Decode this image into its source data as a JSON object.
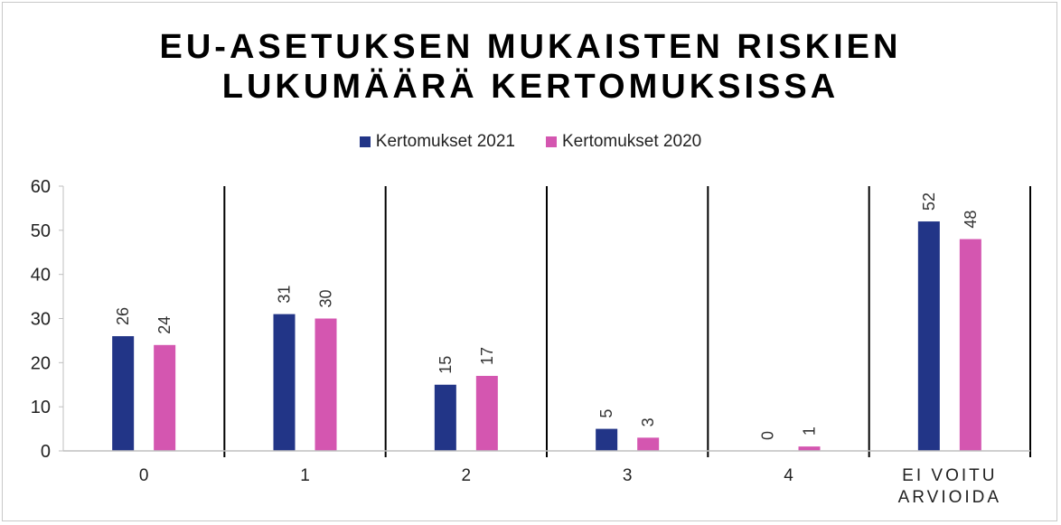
{
  "chart_data": {
    "type": "bar",
    "title_lines": [
      "EU-ASETUKSEN MUKAISTEN RISKIEN",
      "LUKUMÄÄRÄ KERTOMUKSISSA"
    ],
    "categories": [
      [
        "0"
      ],
      [
        "1"
      ],
      [
        "2"
      ],
      [
        "3"
      ],
      [
        "4"
      ],
      [
        "EI VOITU",
        "ARVIOIDA"
      ]
    ],
    "series": [
      {
        "name": "Kertomukset 2021",
        "color": "#223587",
        "values": [
          26,
          31,
          15,
          5,
          0,
          52
        ]
      },
      {
        "name": "Kertomukset 2020",
        "color": "#d456b0",
        "values": [
          24,
          30,
          17,
          3,
          1,
          48
        ]
      }
    ],
    "ylim": [
      0,
      60
    ],
    "yticks": [
      0,
      10,
      20,
      30,
      40,
      50,
      60
    ],
    "xlabel": "",
    "ylabel": "",
    "legend_position": "top",
    "data_labels": "rotated",
    "category_separators": true
  }
}
